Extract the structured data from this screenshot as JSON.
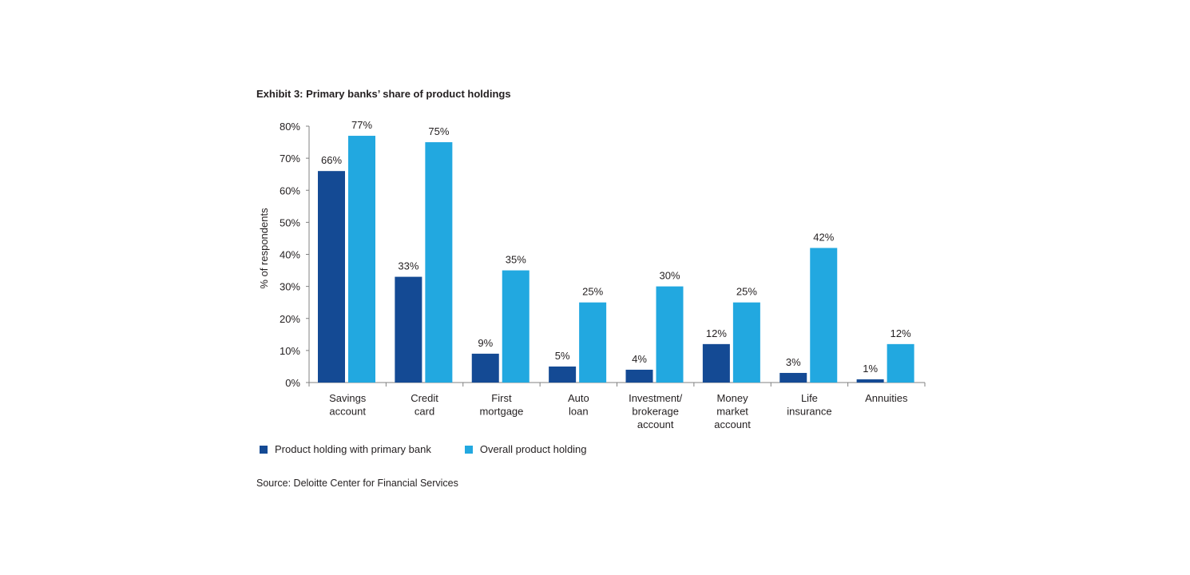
{
  "title": "Exhibit 3: Primary banks’ share of product holdings",
  "source": "Source: Deloitte Center for Financial Services",
  "colors": {
    "primary": "#144a94",
    "overall": "#22a8e0",
    "axis": "#808080"
  },
  "chart_data": {
    "type": "bar",
    "ylabel": "% of respondents",
    "xlabel": "",
    "ylim": [
      0,
      80
    ],
    "yticks": [
      "0%",
      "10%",
      "20%",
      "30%",
      "40%",
      "50%",
      "60%",
      "70%",
      "80%"
    ],
    "categories": [
      [
        "Savings",
        "account"
      ],
      [
        "Credit",
        "card"
      ],
      [
        "First",
        "mortgage"
      ],
      [
        "Auto",
        "loan"
      ],
      [
        "Investment/",
        "brokerage",
        "account"
      ],
      [
        "Money",
        "market",
        "account"
      ],
      [
        "Life",
        "insurance"
      ],
      [
        "Annuities"
      ]
    ],
    "series": [
      {
        "name": "Product holding with primary bank",
        "values": [
          66,
          33,
          9,
          5,
          4,
          12,
          3,
          1
        ],
        "labels": [
          "66%",
          "33%",
          "9%",
          "5%",
          "4%",
          "12%",
          "3%",
          "1%"
        ]
      },
      {
        "name": "Overall product holding",
        "values": [
          77,
          75,
          35,
          25,
          30,
          25,
          42,
          12
        ],
        "labels": [
          "77%",
          "75%",
          "35%",
          "25%",
          "30%",
          "25%",
          "42%",
          "12%"
        ]
      }
    ],
    "legend_position": "bottom-left",
    "grid": false
  }
}
